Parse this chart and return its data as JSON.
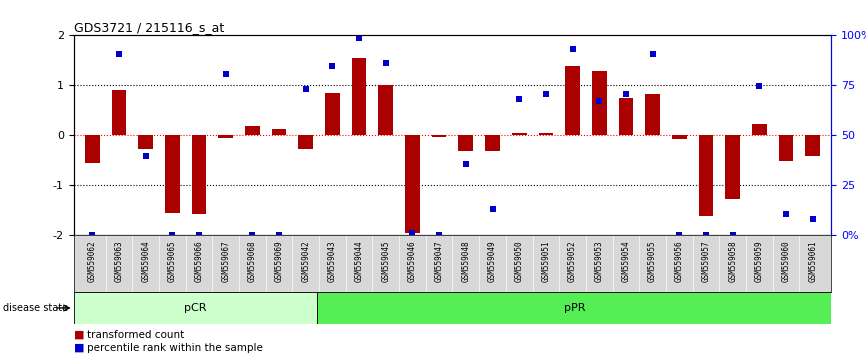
{
  "title": "GDS3721 / 215116_s_at",
  "samples": [
    "GSM559062",
    "GSM559063",
    "GSM559064",
    "GSM559065",
    "GSM559066",
    "GSM559067",
    "GSM559068",
    "GSM559069",
    "GSM559042",
    "GSM559043",
    "GSM559044",
    "GSM559045",
    "GSM559046",
    "GSM559047",
    "GSM559048",
    "GSM559049",
    "GSM559050",
    "GSM559051",
    "GSM559052",
    "GSM559053",
    "GSM559054",
    "GSM559055",
    "GSM559056",
    "GSM559057",
    "GSM559058",
    "GSM559059",
    "GSM559060",
    "GSM559061"
  ],
  "bar_values": [
    -0.55,
    0.9,
    -0.28,
    -1.55,
    -1.58,
    -0.05,
    0.18,
    0.12,
    -0.28,
    0.85,
    1.55,
    1.0,
    -1.95,
    -0.04,
    -0.32,
    -0.32,
    0.05,
    0.05,
    1.38,
    1.28,
    0.75,
    0.82,
    -0.08,
    -1.62,
    -1.28,
    0.22,
    -0.52,
    -0.42
  ],
  "percentile_values": [
    -2.0,
    1.62,
    -0.42,
    -2.0,
    -2.0,
    1.22,
    -2.0,
    -2.0,
    0.92,
    1.38,
    1.95,
    1.45,
    -1.95,
    -2.0,
    -0.58,
    -1.48,
    0.72,
    0.82,
    1.72,
    0.68,
    0.82,
    1.62,
    -2.0,
    -2.0,
    -2.0,
    0.98,
    -1.58,
    -1.68
  ],
  "pCR_count": 9,
  "pPR_count": 19,
  "bar_color": "#aa0000",
  "dot_color": "#0000cc",
  "bar_width": 0.55,
  "ylim": [
    -2.0,
    2.0
  ],
  "y_left_ticks": [
    -2,
    -1,
    0,
    1,
    2
  ],
  "y_left_labels": [
    "-2",
    "-1",
    "0",
    "1",
    "2"
  ],
  "y_right_ticks": [
    -2.0,
    -1.0,
    0.0,
    1.0,
    2.0
  ],
  "y_right_labels": [
    "0%",
    "25",
    "50",
    "75",
    "100%"
  ],
  "hline_black": [
    1.0,
    -1.0
  ],
  "hline_red": 0.0,
  "bg_color": "#ffffff",
  "pCR_color": "#ccffcc",
  "pPR_color": "#55ee55",
  "disease_label": "disease state",
  "legend_bar_label": "transformed count",
  "legend_dot_label": "percentile rank within the sample"
}
